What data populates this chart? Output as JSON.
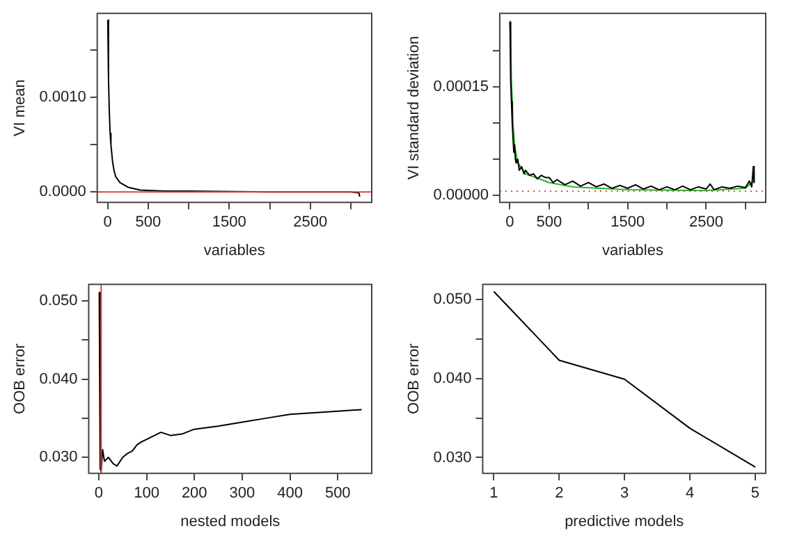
{
  "chart_data": [
    {
      "type": "line",
      "xlabel": "variables",
      "ylabel": "VI mean",
      "xlim": [
        -129,
        3258
      ],
      "ylim": [
        -0.00011,
        0.00189
      ],
      "xticks": [
        0,
        500,
        {
          "value": 1000,
          "label": null
        },
        1500,
        {
          "value": 2000,
          "label": null
        },
        2500,
        {
          "value": 3000,
          "label": null
        }
      ],
      "yticks": [
        {
          "value": 0,
          "label": "0.0000"
        },
        {
          "value": 0.0005,
          "label": null
        },
        {
          "value": 0.001,
          "label": "0.0010"
        },
        {
          "value": 0.0015,
          "label": null
        }
      ],
      "grid": false,
      "legend": false,
      "marker": "none",
      "line_style": "solid",
      "series": [
        {
          "color": "#000000",
          "x": [
            1,
            10,
            20,
            30,
            40,
            60,
            80,
            100,
            150,
            250,
            400,
            700,
            1000,
            2000,
            3000,
            3100,
            3110
          ],
          "values": [
            0.00182,
            0.0012,
            0.00085,
            0.00062,
            0.0005,
            0.00032,
            0.00022,
            0.00016,
            0.0001,
            5e-05,
            2e-05,
            1e-05,
            1e-05,
            0.0,
            0.0,
            -1e-05,
            -5e-05
          ]
        }
      ],
      "ref_lines": [
        {
          "axis": "y",
          "value": 0,
          "color": "#e04040",
          "line_style": "solid"
        }
      ]
    },
    {
      "type": "line",
      "xlabel": "variables",
      "ylabel": "VI standard deviation",
      "xlim": [
        -129,
        3258
      ],
      "ylim": [
        -9.4e-06,
        0.000252
      ],
      "xticks": [
        0,
        500,
        {
          "value": 1000,
          "label": null
        },
        1500,
        {
          "value": 2000,
          "label": null
        },
        2500,
        {
          "value": 3000,
          "label": null
        }
      ],
      "yticks": [
        {
          "value": 0,
          "label": "0.00000"
        },
        {
          "value": 5e-05,
          "label": null
        },
        {
          "value": 0.0001,
          "label": null
        },
        0.00015,
        {
          "value": 0.0002,
          "label": null
        }
      ],
      "grid": false,
      "legend": false,
      "marker": "none",
      "line_style": "solid",
      "series": [
        {
          "color": "#000000",
          "x": [
            1,
            10,
            20,
            30,
            40,
            50,
            60,
            70,
            80,
            100,
            120,
            150,
            180,
            200,
            250,
            300,
            350,
            400,
            450,
            500,
            550,
            600,
            700,
            800,
            900,
            1000,
            1100,
            1200,
            1300,
            1400,
            1500,
            1600,
            1700,
            1800,
            1900,
            2000,
            2100,
            2200,
            2300,
            2400,
            2500,
            2550,
            2600,
            2700,
            2800,
            2900,
            3000,
            3050,
            3080,
            3100,
            3110
          ],
          "values": [
            0.00024,
            0.00016,
            0.00013,
            0.0001,
            8e-05,
            6e-05,
            7e-05,
            5e-05,
            4.5e-05,
            5e-05,
            3.5e-05,
            4e-05,
            3e-05,
            3.5e-05,
            2.8e-05,
            3e-05,
            2.3e-05,
            2.8e-05,
            2.5e-05,
            2.5e-05,
            1.8e-05,
            2.2e-05,
            1.5e-05,
            2e-05,
            1.3e-05,
            1.8e-05,
            1.2e-05,
            1.6e-05,
            1e-05,
            1.4e-05,
            1e-05,
            1.5e-05,
            9e-06,
            1.3e-05,
            8e-06,
            1.2e-05,
            8e-06,
            1.3e-05,
            8e-06,
            1.2e-05,
            9e-06,
            1.6e-05,
            8e-06,
            1.2e-05,
            1e-05,
            1.3e-05,
            1.1e-05,
            2e-05,
            1.2e-05,
            4e-05,
            1.8e-05
          ]
        },
        {
          "color": "#22bb22",
          "x": [
            1,
            20,
            40,
            60,
            100,
            200,
            400,
            500,
            800,
            1500,
            2500,
            3000,
            3100,
            3110
          ],
          "values": [
            0.000242,
            0.00016,
            0.0001,
            7e-05,
            4.5e-05,
            3e-05,
            2.2e-05,
            1.8e-05,
            1.2e-05,
            8e-06,
            7e-06,
            1e-05,
            2e-05,
            3e-05
          ]
        }
      ],
      "ref_lines": [
        {
          "axis": "y",
          "value": 6e-06,
          "color": "#e04040",
          "line_style": "dotted"
        }
      ]
    },
    {
      "type": "line",
      "xlabel": "nested models",
      "ylabel": "OOB error",
      "xlim": [
        -21,
        571
      ],
      "ylim": [
        0.02796,
        0.0521
      ],
      "xticks": [
        0,
        100,
        200,
        300,
        400,
        500
      ],
      "yticks": [
        {
          "value": 0.03,
          "label": "0.030"
        },
        {
          "value": 0.035,
          "label": null
        },
        {
          "value": 0.04,
          "label": "0.040"
        },
        {
          "value": 0.045,
          "label": null
        },
        {
          "value": 0.05,
          "label": "0.050"
        }
      ],
      "grid": false,
      "legend": false,
      "marker": "none",
      "line_style": "solid",
      "series": [
        {
          "color": "#000000",
          "x": [
            1,
            3,
            5,
            8,
            12,
            20,
            30,
            38,
            50,
            60,
            70,
            80,
            90,
            100,
            110,
            130,
            140,
            150,
            175,
            200,
            250,
            300,
            350,
            400,
            450,
            500,
            550
          ],
          "values": [
            0.0511,
            0.0285,
            0.0282,
            0.031,
            0.0295,
            0.03,
            0.0292,
            0.0289,
            0.03,
            0.0305,
            0.0308,
            0.0316,
            0.032,
            0.0323,
            0.0326,
            0.0332,
            0.033,
            0.0328,
            0.033,
            0.0336,
            0.034,
            0.0345,
            0.035,
            0.0355,
            0.0357,
            0.0359,
            0.0361
          ]
        }
      ],
      "ref_lines": [
        {
          "axis": "x",
          "value": 5,
          "color": "#e04040",
          "line_style": "solid"
        }
      ]
    },
    {
      "type": "line",
      "xlabel": "predictive models",
      "ylabel": "OOB error",
      "xlim": [
        0.83,
        5.16
      ],
      "ylim": [
        0.028,
        0.0519
      ],
      "xticks": [
        1,
        2,
        3,
        4,
        5
      ],
      "yticks": [
        {
          "value": 0.03,
          "label": "0.030"
        },
        {
          "value": 0.035,
          "label": null
        },
        {
          "value": 0.04,
          "label": "0.040"
        },
        {
          "value": 0.045,
          "label": null
        },
        {
          "value": 0.05,
          "label": "0.050"
        }
      ],
      "grid": false,
      "legend": false,
      "marker": "none",
      "line_style": "solid",
      "series": [
        {
          "color": "#000000",
          "x": [
            1,
            2,
            3,
            4,
            5
          ],
          "values": [
            0.051,
            0.0423,
            0.0399,
            0.0337,
            0.0288
          ]
        }
      ]
    }
  ]
}
